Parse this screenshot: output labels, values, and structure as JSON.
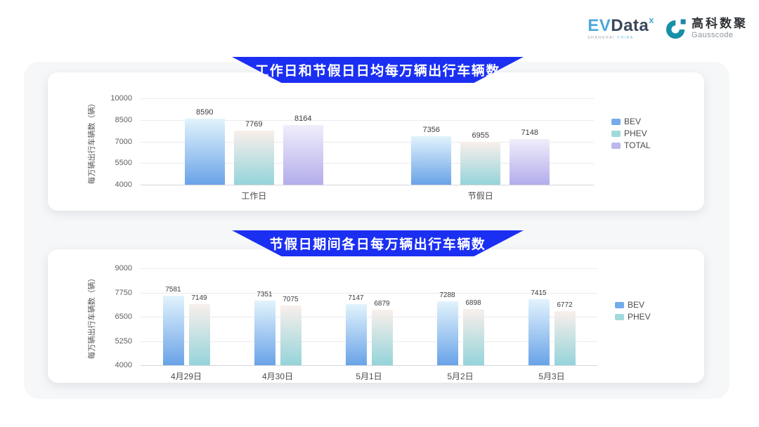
{
  "header": {
    "evdata": {
      "ev": "EV",
      "data": "Data",
      "sup": "x",
      "tagline_place": "SHANGHAI",
      "tagline_country": "CHINA"
    },
    "gausscode": {
      "cn": "高科数聚",
      "en": "Gausscode"
    }
  },
  "colors": {
    "banner": "#1b2ff2",
    "evdata_blue": "#4fa8da",
    "evdata_dark": "#39475c",
    "gausscode_teal": "#1690a8",
    "series": {
      "BEV": {
        "gradient_top": "#e2f3fc",
        "gradient_bottom": "#69a3e8",
        "legend": "#74abeb"
      },
      "PHEV": {
        "gradient_top": "#f9efeb",
        "gradient_bottom": "#95d4da",
        "legend": "#a2dadb"
      },
      "TOTAL": {
        "gradient_top": "#f0eefb",
        "gradient_bottom": "#b3adeb",
        "legend": "#bcb7ee"
      }
    }
  },
  "chart_data": [
    {
      "type": "bar",
      "title": "工作日和节假日日均每万辆出行车辆数",
      "ylabel": "每万辆出行车辆数（辆）",
      "categories": [
        "工作日",
        "节假日"
      ],
      "series": [
        {
          "name": "BEV",
          "values": [
            8590,
            7356
          ]
        },
        {
          "name": "PHEV",
          "values": [
            7769,
            6955
          ]
        },
        {
          "name": "TOTAL",
          "values": [
            8164,
            7148
          ]
        }
      ],
      "ylim": [
        4000,
        10000
      ],
      "yticks": [
        4000,
        5500,
        7000,
        8500,
        10000
      ],
      "grid": true,
      "legend_position": "right"
    },
    {
      "type": "bar",
      "title": "节假日期间各日每万辆出行车辆数",
      "ylabel": "每万辆出行车辆数（辆）",
      "categories": [
        "4月29日",
        "4月30日",
        "5月1日",
        "5月2日",
        "5月3日"
      ],
      "series": [
        {
          "name": "BEV",
          "values": [
            7581,
            7351,
            7147,
            7288,
            7415
          ]
        },
        {
          "name": "PHEV",
          "values": [
            7149,
            7075,
            6879,
            6898,
            6772
          ]
        }
      ],
      "ylim": [
        4000,
        9000
      ],
      "yticks": [
        4000,
        5250,
        6500,
        7750,
        9000
      ],
      "grid": true,
      "legend_position": "right"
    }
  ]
}
